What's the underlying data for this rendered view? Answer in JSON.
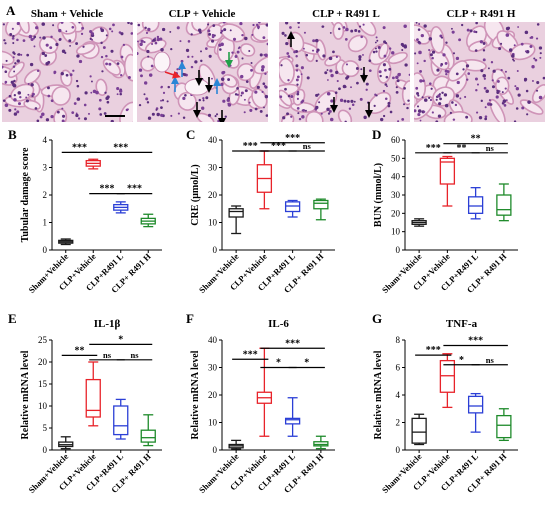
{
  "histology": {
    "panel_letter": "A",
    "scale_bar": true,
    "images": [
      {
        "title": "Sham + Vehicle",
        "arrows": []
      },
      {
        "title": "CLP + Vehicle",
        "arrows": [
          {
            "color": "blue",
            "dir": "up"
          },
          {
            "color": "blue",
            "dir": "up"
          },
          {
            "color": "blue",
            "dir": "up"
          },
          {
            "color": "green",
            "dir": "down"
          },
          {
            "color": "red",
            "dir": "right"
          },
          {
            "color": "black",
            "dir": "down"
          },
          {
            "color": "black",
            "dir": "down"
          },
          {
            "color": "black",
            "dir": "down"
          },
          {
            "color": "black",
            "dir": "down"
          }
        ]
      },
      {
        "title": "CLP + R491 L",
        "arrows": [
          {
            "color": "black",
            "dir": "up"
          },
          {
            "color": "black",
            "dir": "down"
          },
          {
            "color": "black",
            "dir": "down"
          },
          {
            "color": "black",
            "dir": "down"
          }
        ]
      },
      {
        "title": "CLP + R491 H",
        "arrows": []
      }
    ]
  },
  "colors": {
    "sham": "#1a1a1a",
    "clp": "#e8232a",
    "r491l": "#2b3fd6",
    "r491h": "#1e8a2a",
    "tissue_bg": "#ead0df"
  },
  "chart_data": [
    {
      "panel": "B",
      "type": "box",
      "title": "",
      "xlabel": "",
      "ylabel": "Tubular damage score",
      "ylim": [
        0,
        4
      ],
      "yticks": [
        0,
        1,
        2,
        3,
        4
      ],
      "categories": [
        "Sham+Vehicle",
        "CLP+Vehicle",
        "CLP+R491 L",
        "CLP+ R491 H"
      ],
      "boxes": [
        {
          "min": 0.2,
          "q1": 0.25,
          "median": 0.3,
          "q3": 0.35,
          "max": 0.4
        },
        {
          "min": 2.95,
          "q1": 3.05,
          "median": 3.15,
          "q3": 3.25,
          "max": 3.3
        },
        {
          "min": 1.35,
          "q1": 1.45,
          "median": 1.55,
          "q3": 1.65,
          "max": 1.75
        },
        {
          "min": 0.85,
          "q1": 0.95,
          "median": 1.05,
          "q3": 1.15,
          "max": 1.3
        }
      ],
      "comparisons": [
        {
          "from": 0,
          "to": 1,
          "label": "***",
          "y": 3.55
        },
        {
          "from": 1,
          "to": 2,
          "label": "***",
          "y": 2.05
        },
        {
          "from": 2,
          "to": 3,
          "label": "***",
          "y": 2.05
        },
        {
          "from": 1,
          "to": 3,
          "label": "***",
          "y": 3.55
        }
      ]
    },
    {
      "panel": "C",
      "type": "box",
      "title": "",
      "xlabel": "",
      "ylabel": "CRE (μmol/L)",
      "ylim": [
        0,
        40
      ],
      "yticks": [
        0,
        10,
        20,
        30,
        40
      ],
      "categories": [
        "Sham+Vehicle",
        "CLP+Vehicle",
        "CLP+R491 L",
        "CLP+ R491 H"
      ],
      "boxes": [
        {
          "min": 6,
          "q1": 12,
          "median": 14,
          "q3": 15,
          "max": 16
        },
        {
          "min": 15,
          "q1": 21,
          "median": 26,
          "q3": 31,
          "max": 36
        },
        {
          "min": 12,
          "q1": 14,
          "median": 16,
          "q3": 17.5,
          "max": 18
        },
        {
          "min": 11,
          "q1": 15,
          "median": 17,
          "q3": 18,
          "max": 18.5
        }
      ],
      "comparisons": [
        {
          "from": 0,
          "to": 1,
          "label": "***",
          "y": 36
        },
        {
          "from": 1,
          "to": 2,
          "label": "***",
          "y": 36
        },
        {
          "from": 2,
          "to": 3,
          "label": "ns",
          "y": 36
        },
        {
          "from": 1,
          "to": 3,
          "label": "***",
          "y": 39
        }
      ]
    },
    {
      "panel": "D",
      "type": "box",
      "title": "",
      "xlabel": "",
      "ylabel": "BUN (mmol/L)",
      "ylim": [
        0,
        60
      ],
      "yticks": [
        0,
        10,
        20,
        30,
        40,
        50,
        60
      ],
      "categories": [
        "Sham+Vehicle",
        "CLP+Vehicle",
        "CLP+R491 L",
        "CLP+ R491 H"
      ],
      "boxes": [
        {
          "min": 13,
          "q1": 14,
          "median": 15,
          "q3": 16,
          "max": 17
        },
        {
          "min": 24,
          "q1": 36,
          "median": 48,
          "q3": 50,
          "max": 51
        },
        {
          "min": 17,
          "q1": 20,
          "median": 24,
          "q3": 29,
          "max": 34
        },
        {
          "min": 16,
          "q1": 19,
          "median": 22,
          "q3": 30,
          "max": 36
        }
      ],
      "comparisons": [
        {
          "from": 0,
          "to": 1,
          "label": "***",
          "y": 53
        },
        {
          "from": 1,
          "to": 2,
          "label": "**",
          "y": 53
        },
        {
          "from": 2,
          "to": 3,
          "label": "ns",
          "y": 53
        },
        {
          "from": 1,
          "to": 3,
          "label": "**",
          "y": 58
        }
      ]
    },
    {
      "panel": "E",
      "type": "box",
      "title": "IL-1β",
      "xlabel": "",
      "ylabel": "Relative mRNA level",
      "ylim": [
        0,
        25
      ],
      "yticks": [
        0,
        5,
        10,
        15,
        20,
        25
      ],
      "categories": [
        "Sham+Vehicle",
        "CLP+Vehicle",
        "CLP+R491 L",
        "CLP+ R491 H"
      ],
      "boxes": [
        {
          "min": 0.3,
          "q1": 0.8,
          "median": 1.2,
          "q3": 1.8,
          "max": 3
        },
        {
          "min": 5.5,
          "q1": 7.5,
          "median": 9,
          "q3": 16,
          "max": 20
        },
        {
          "min": 2.5,
          "q1": 3.5,
          "median": 5.5,
          "q3": 10,
          "max": 11.5
        },
        {
          "min": 1,
          "q1": 1.8,
          "median": 2.8,
          "q3": 4.5,
          "max": 8
        }
      ],
      "comparisons": [
        {
          "from": 0,
          "to": 1,
          "label": "**",
          "y": 21.5
        },
        {
          "from": 1,
          "to": 2,
          "label": "ns",
          "y": 20.5
        },
        {
          "from": 2,
          "to": 3,
          "label": "ns",
          "y": 20.5
        },
        {
          "from": 1,
          "to": 3,
          "label": "*",
          "y": 24
        }
      ]
    },
    {
      "panel": "F",
      "type": "box",
      "title": "IL-6",
      "xlabel": "",
      "ylabel": "Relative mRNA level",
      "ylim": [
        0,
        40
      ],
      "yticks": [
        0,
        10,
        20,
        30,
        40
      ],
      "categories": [
        "Sham+Vehicle",
        "CLP+Vehicle",
        "CLP+R491 L",
        "CLP+ R491 H"
      ],
      "boxes": [
        {
          "min": 0.3,
          "q1": 0.8,
          "median": 1.5,
          "q3": 2,
          "max": 3.5
        },
        {
          "min": 5,
          "q1": 17,
          "median": 19,
          "q3": 21,
          "max": 37
        },
        {
          "min": 5,
          "q1": 9.5,
          "median": 11,
          "q3": 11.5,
          "max": 19
        },
        {
          "min": 0.5,
          "q1": 1.5,
          "median": 2,
          "q3": 3,
          "max": 5
        }
      ],
      "comparisons": [
        {
          "from": 0,
          "to": 1,
          "label": "***",
          "y": 33
        },
        {
          "from": 1,
          "to": 2,
          "label": "*",
          "y": 30
        },
        {
          "from": 2,
          "to": 3,
          "label": "*",
          "y": 30
        },
        {
          "from": 1,
          "to": 3,
          "label": "***",
          "y": 37
        }
      ]
    },
    {
      "panel": "G",
      "type": "box",
      "title": "TNF-a",
      "xlabel": "",
      "ylabel": "Relative mRNA level",
      "ylim": [
        0,
        8
      ],
      "yticks": [
        0,
        2,
        4,
        6,
        8
      ],
      "categories": [
        "Sham+Vehicle",
        "CLP+Vehicle",
        "CLP+R491 L",
        "CLP+ R491 H"
      ],
      "boxes": [
        {
          "min": 0.4,
          "q1": 0.5,
          "median": 1.3,
          "q3": 2.3,
          "max": 2.6
        },
        {
          "min": 3.1,
          "q1": 4.2,
          "median": 5.4,
          "q3": 6.5,
          "max": 7
        },
        {
          "min": 1.3,
          "q1": 2.7,
          "median": 3.2,
          "q3": 3.9,
          "max": 4.1
        },
        {
          "min": 0.7,
          "q1": 0.9,
          "median": 1.8,
          "q3": 2.5,
          "max": 3
        }
      ],
      "comparisons": [
        {
          "from": 0,
          "to": 1,
          "label": "***",
          "y": 6.9
        },
        {
          "from": 1,
          "to": 2,
          "label": "*",
          "y": 6.2
        },
        {
          "from": 2,
          "to": 3,
          "label": "ns",
          "y": 6.2
        },
        {
          "from": 1,
          "to": 3,
          "label": "***",
          "y": 7.6
        }
      ]
    }
  ]
}
